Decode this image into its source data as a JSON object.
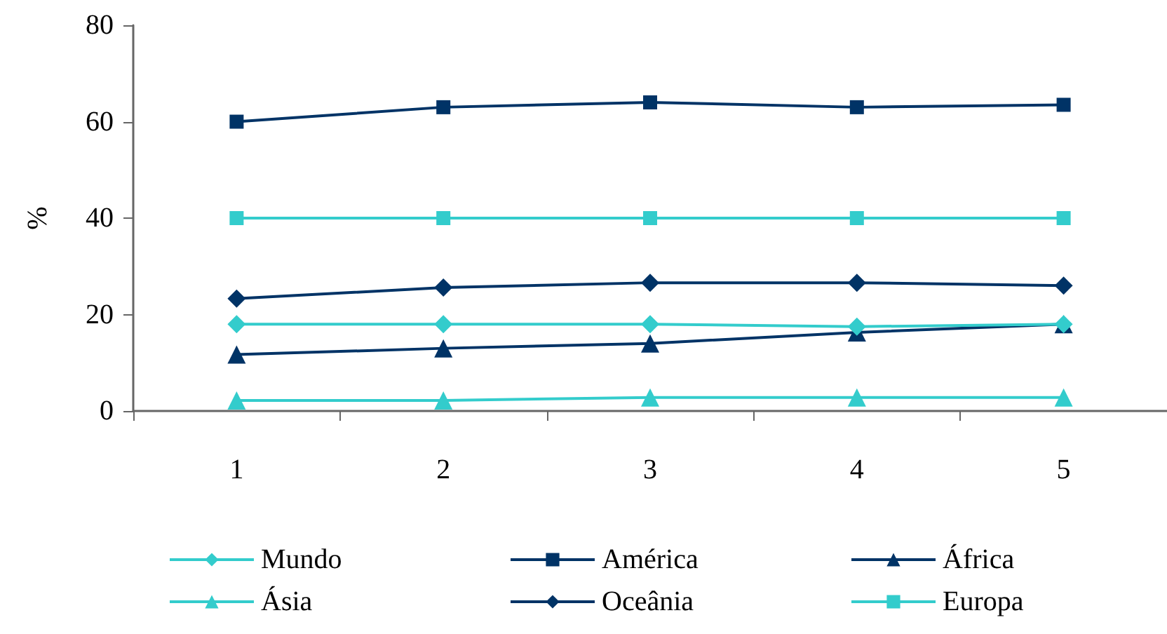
{
  "chart_data": {
    "type": "line",
    "ylabel": "%",
    "categories": [
      "1",
      "2",
      "3",
      "4",
      "5"
    ],
    "ylim": [
      0,
      80
    ],
    "yticks": [
      0,
      20,
      40,
      60,
      80
    ],
    "grid": false,
    "legend": "bottom",
    "line_style": "solid",
    "series": [
      {
        "name": "Mundo",
        "color": "#33cccc",
        "marker": "diamond",
        "values": [
          18,
          18,
          18,
          17.5,
          18
        ]
      },
      {
        "name": "América",
        "color": "#003366",
        "marker": "square",
        "values": [
          60,
          63,
          64,
          63,
          63.5
        ]
      },
      {
        "name": "África",
        "color": "#003366",
        "marker": "triangle",
        "values": [
          11.7,
          13,
          14,
          16.3,
          18
        ]
      },
      {
        "name": "Ásia",
        "color": "#33cccc",
        "marker": "triangle",
        "values": [
          2.2,
          2.2,
          2.8,
          2.8,
          2.8
        ]
      },
      {
        "name": "Oceânia",
        "color": "#003366",
        "marker": "diamond",
        "values": [
          23.3,
          25.6,
          26.6,
          26.6,
          26
        ]
      },
      {
        "name": "Europa",
        "color": "#33cccc",
        "marker": "square",
        "values": [
          40,
          40,
          40,
          40,
          40
        ]
      }
    ]
  }
}
